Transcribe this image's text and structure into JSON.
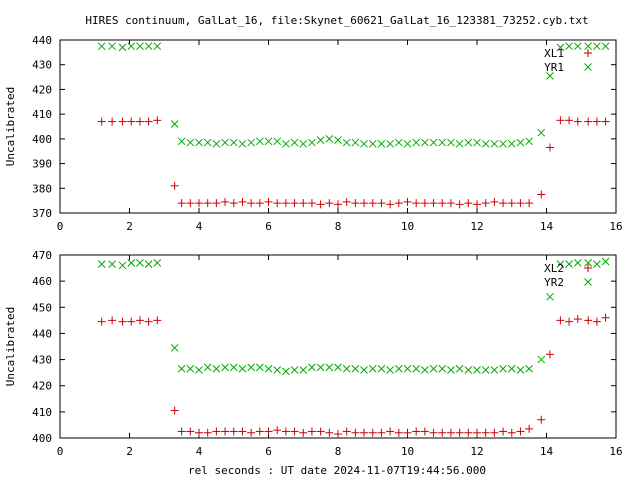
{
  "title": "HIRES continuum, GalLat_16, file:Skynet_60621_GalLat_16_123381_73252.cyb.txt",
  "xlabel": "rel seconds : UT date 2024-11-07T19:44:56.000",
  "colors": {
    "series1": "#cc0000",
    "series2": "#00aa00",
    "axes": "#000000"
  },
  "chart_data": [
    {
      "type": "scatter",
      "ylabel": "Uncalibrated",
      "xlim": [
        0,
        16
      ],
      "ylim": [
        370,
        440
      ],
      "xticks": [
        0,
        2,
        4,
        6,
        8,
        10,
        12,
        14,
        16
      ],
      "yticks": [
        370,
        380,
        390,
        400,
        410,
        420,
        430,
        440
      ],
      "legend_position": "top-right",
      "series": [
        {
          "name": "XL1",
          "marker": "+",
          "points": [
            [
              1.2,
              407
            ],
            [
              1.5,
              407
            ],
            [
              1.8,
              407
            ],
            [
              2.05,
              407
            ],
            [
              2.3,
              407
            ],
            [
              2.55,
              407
            ],
            [
              2.8,
              407.5
            ],
            [
              3.3,
              381
            ],
            [
              3.5,
              374
            ],
            [
              3.75,
              374
            ],
            [
              4.0,
              374
            ],
            [
              4.25,
              374
            ],
            [
              4.5,
              374
            ],
            [
              4.75,
              374.5
            ],
            [
              5.0,
              374
            ],
            [
              5.25,
              374.5
            ],
            [
              5.5,
              374
            ],
            [
              5.75,
              374
            ],
            [
              6.0,
              374.5
            ],
            [
              6.25,
              374
            ],
            [
              6.5,
              374
            ],
            [
              6.75,
              374
            ],
            [
              7.0,
              374
            ],
            [
              7.25,
              374
            ],
            [
              7.5,
              373.5
            ],
            [
              7.75,
              374
            ],
            [
              8.0,
              373.5
            ],
            [
              8.25,
              374.5
            ],
            [
              8.5,
              374
            ],
            [
              8.75,
              374
            ],
            [
              9.0,
              374
            ],
            [
              9.25,
              374
            ],
            [
              9.5,
              373.5
            ],
            [
              9.75,
              374
            ],
            [
              10.0,
              374.5
            ],
            [
              10.25,
              374
            ],
            [
              10.5,
              374
            ],
            [
              10.75,
              374
            ],
            [
              11.0,
              374
            ],
            [
              11.25,
              374
            ],
            [
              11.5,
              373.5
            ],
            [
              11.75,
              374
            ],
            [
              12.0,
              373.5
            ],
            [
              12.25,
              374
            ],
            [
              12.5,
              374.5
            ],
            [
              12.75,
              374
            ],
            [
              13.0,
              374
            ],
            [
              13.25,
              374
            ],
            [
              13.5,
              374
            ],
            [
              13.85,
              377.5
            ],
            [
              14.1,
              396.5
            ],
            [
              14.4,
              407.5
            ],
            [
              14.65,
              407.5
            ],
            [
              14.9,
              407
            ],
            [
              15.2,
              407
            ],
            [
              15.45,
              407
            ],
            [
              15.7,
              407
            ]
          ]
        },
        {
          "name": "YR1",
          "marker": "x",
          "points": [
            [
              1.2,
              437.5
            ],
            [
              1.5,
              437.5
            ],
            [
              1.8,
              437
            ],
            [
              2.05,
              437.5
            ],
            [
              2.3,
              437.5
            ],
            [
              2.55,
              437.5
            ],
            [
              2.8,
              437.5
            ],
            [
              3.3,
              406
            ],
            [
              3.5,
              399
            ],
            [
              3.75,
              398.5
            ],
            [
              4.0,
              398.5
            ],
            [
              4.25,
              398.5
            ],
            [
              4.5,
              398
            ],
            [
              4.75,
              398.5
            ],
            [
              5.0,
              398.5
            ],
            [
              5.25,
              398
            ],
            [
              5.5,
              398.5
            ],
            [
              5.75,
              399
            ],
            [
              6.0,
              399
            ],
            [
              6.25,
              399
            ],
            [
              6.5,
              398
            ],
            [
              6.75,
              398.5
            ],
            [
              7.0,
              398
            ],
            [
              7.25,
              398.5
            ],
            [
              7.5,
              399.5
            ],
            [
              7.75,
              400
            ],
            [
              8.0,
              399.5
            ],
            [
              8.25,
              398.5
            ],
            [
              8.5,
              398.5
            ],
            [
              8.75,
              398
            ],
            [
              9.0,
              398
            ],
            [
              9.25,
              398
            ],
            [
              9.5,
              398
            ],
            [
              9.75,
              398.5
            ],
            [
              10.0,
              398
            ],
            [
              10.25,
              398.5
            ],
            [
              10.5,
              398.5
            ],
            [
              10.75,
              398.5
            ],
            [
              11.0,
              398.5
            ],
            [
              11.25,
              398.5
            ],
            [
              11.5,
              398
            ],
            [
              11.75,
              398.5
            ],
            [
              12.0,
              398.5
            ],
            [
              12.25,
              398
            ],
            [
              12.5,
              398
            ],
            [
              12.75,
              398
            ],
            [
              13.0,
              398
            ],
            [
              13.25,
              398.5
            ],
            [
              13.5,
              399
            ],
            [
              13.85,
              402.5
            ],
            [
              14.1,
              425.5
            ],
            [
              14.4,
              437
            ],
            [
              14.65,
              437.5
            ],
            [
              14.9,
              437.5
            ],
            [
              15.2,
              437.5
            ],
            [
              15.45,
              437.5
            ],
            [
              15.7,
              437.5
            ]
          ]
        }
      ]
    },
    {
      "type": "scatter",
      "ylabel": "Uncalibrated",
      "xlim": [
        0,
        16
      ],
      "ylim": [
        400,
        470
      ],
      "xticks": [
        0,
        2,
        4,
        6,
        8,
        10,
        12,
        14,
        16
      ],
      "yticks": [
        400,
        410,
        420,
        430,
        440,
        450,
        460,
        470
      ],
      "legend_position": "top-right",
      "series": [
        {
          "name": "XL2",
          "marker": "+",
          "points": [
            [
              1.2,
              444.5
            ],
            [
              1.5,
              445
            ],
            [
              1.8,
              444.5
            ],
            [
              2.05,
              444.5
            ],
            [
              2.3,
              445
            ],
            [
              2.55,
              444.5
            ],
            [
              2.8,
              445
            ],
            [
              3.3,
              410.5
            ],
            [
              3.5,
              402.5
            ],
            [
              3.75,
              402.5
            ],
            [
              4.0,
              402
            ],
            [
              4.25,
              402
            ],
            [
              4.5,
              402.5
            ],
            [
              4.75,
              402.5
            ],
            [
              5.0,
              402.5
            ],
            [
              5.25,
              402.5
            ],
            [
              5.5,
              402
            ],
            [
              5.75,
              402.5
            ],
            [
              6.0,
              402.5
            ],
            [
              6.25,
              403
            ],
            [
              6.5,
              402.5
            ],
            [
              6.75,
              402.5
            ],
            [
              7.0,
              402
            ],
            [
              7.25,
              402.5
            ],
            [
              7.5,
              402.5
            ],
            [
              7.75,
              402
            ],
            [
              8.0,
              401.5
            ],
            [
              8.25,
              402.5
            ],
            [
              8.5,
              402
            ],
            [
              8.75,
              402
            ],
            [
              9.0,
              402
            ],
            [
              9.25,
              402
            ],
            [
              9.5,
              402.5
            ],
            [
              9.75,
              402
            ],
            [
              10.0,
              402
            ],
            [
              10.25,
              402.5
            ],
            [
              10.5,
              402.5
            ],
            [
              10.75,
              402
            ],
            [
              11.0,
              402
            ],
            [
              11.25,
              402
            ],
            [
              11.5,
              402
            ],
            [
              11.75,
              402
            ],
            [
              12.0,
              402
            ],
            [
              12.25,
              402
            ],
            [
              12.5,
              402
            ],
            [
              12.75,
              402.5
            ],
            [
              13.0,
              402
            ],
            [
              13.25,
              402.5
            ],
            [
              13.5,
              403.5
            ],
            [
              13.85,
              407
            ],
            [
              14.1,
              432
            ],
            [
              14.4,
              445
            ],
            [
              14.65,
              444.5
            ],
            [
              14.9,
              445.5
            ],
            [
              15.2,
              445
            ],
            [
              15.45,
              444.5
            ],
            [
              15.7,
              446
            ]
          ]
        },
        {
          "name": "YR2",
          "marker": "x",
          "points": [
            [
              1.2,
              466.5
            ],
            [
              1.5,
              466.5
            ],
            [
              1.8,
              466
            ],
            [
              2.05,
              467
            ],
            [
              2.3,
              467
            ],
            [
              2.55,
              466.5
            ],
            [
              2.8,
              467
            ],
            [
              3.3,
              434.5
            ],
            [
              3.5,
              426.5
            ],
            [
              3.75,
              426.5
            ],
            [
              4.0,
              426
            ],
            [
              4.25,
              427
            ],
            [
              4.5,
              426.5
            ],
            [
              4.75,
              427
            ],
            [
              5.0,
              427
            ],
            [
              5.25,
              426.5
            ],
            [
              5.5,
              427
            ],
            [
              5.75,
              427
            ],
            [
              6.0,
              426.5
            ],
            [
              6.25,
              426
            ],
            [
              6.5,
              425.5
            ],
            [
              6.75,
              426
            ],
            [
              7.0,
              426
            ],
            [
              7.25,
              427
            ],
            [
              7.5,
              427
            ],
            [
              7.75,
              427
            ],
            [
              8.0,
              427
            ],
            [
              8.25,
              426.5
            ],
            [
              8.5,
              426.5
            ],
            [
              8.75,
              426
            ],
            [
              9.0,
              426.5
            ],
            [
              9.25,
              426.5
            ],
            [
              9.5,
              426
            ],
            [
              9.75,
              426.5
            ],
            [
              10.0,
              426.5
            ],
            [
              10.25,
              426.5
            ],
            [
              10.5,
              426
            ],
            [
              10.75,
              426.5
            ],
            [
              11.0,
              426.5
            ],
            [
              11.25,
              426
            ],
            [
              11.5,
              426.5
            ],
            [
              11.75,
              426
            ],
            [
              12.0,
              426
            ],
            [
              12.25,
              426
            ],
            [
              12.5,
              426
            ],
            [
              12.75,
              426.5
            ],
            [
              13.0,
              426.5
            ],
            [
              13.25,
              426
            ],
            [
              13.5,
              426.5
            ],
            [
              13.85,
              430
            ],
            [
              14.1,
              454
            ],
            [
              14.4,
              466.5
            ],
            [
              14.65,
              466.5
            ],
            [
              14.9,
              467
            ],
            [
              15.2,
              467
            ],
            [
              15.45,
              466.5
            ],
            [
              15.7,
              467.5
            ]
          ]
        }
      ]
    }
  ]
}
